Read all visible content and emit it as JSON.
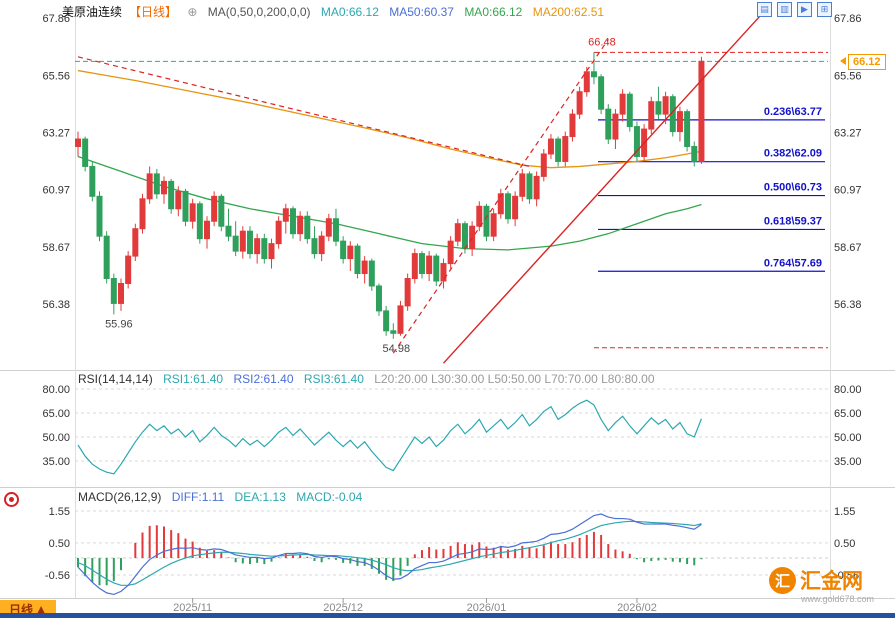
{
  "header": {
    "title": "美原油连续",
    "period": "【日线】",
    "indicator": "MA(0,50,0,200,0,0)",
    "ma_labels": [
      {
        "text": "MA0:66.12",
        "color": "#2ba8b0"
      },
      {
        "text": "MA50:60.37",
        "color": "#4a6fd8"
      },
      {
        "text": "MA0:66.12",
        "color": "#33a64c"
      },
      {
        "text": "MA200:62.51",
        "color": "#e8950f"
      }
    ]
  },
  "icons": {
    "add_indicator": "⊕"
  },
  "toolbar_icons": [
    {
      "glyph": "▤"
    },
    {
      "glyph": "▥"
    },
    {
      "glyph": "▶"
    },
    {
      "glyph": "⊞"
    }
  ],
  "price_axis": {
    "main_ticks": [
      "67.86",
      "65.56",
      "63.27",
      "60.97",
      "58.67",
      "56.38"
    ],
    "rsi_ticks": [
      "80.00",
      "65.00",
      "50.00",
      "35.00"
    ],
    "macd_ticks": [
      "1.55",
      "0.50",
      "-0.56"
    ],
    "last_price_tag": "66.12"
  },
  "x_axis": [
    {
      "text": "2025/11",
      "index": 16
    },
    {
      "text": "2025/12",
      "index": 37
    },
    {
      "text": "2026/01",
      "index": 57
    },
    {
      "text": "2026/02",
      "index": 78
    }
  ],
  "annotations": {
    "peak": {
      "text": "66.48",
      "price": 66.48,
      "index": 72
    },
    "low1": {
      "text": "55.96",
      "price": 55.96,
      "index": 5
    },
    "low2": {
      "text": "54.98",
      "price": 54.98,
      "index": 44
    },
    "last_price_line": 66.12,
    "ext_high_line": 66.48,
    "ext_low_line": 54.98
  },
  "fib_levels": [
    {
      "label": "0.236\\63.77",
      "value": 63.77
    },
    {
      "label": "0.382\\62.09",
      "value": 62.09
    },
    {
      "label": "0.500\\60.73",
      "value": 60.73
    },
    {
      "label": "0.618\\59.37",
      "value": 59.37
    },
    {
      "label": "0.764\\57.69",
      "value": 57.69
    }
  ],
  "trend_lines": [
    {
      "style": "dashed",
      "points": [
        [
          0,
          66.3
        ],
        [
          63,
          61.9
        ]
      ]
    },
    {
      "style": "dashed",
      "points": [
        [
          44,
          54.4
        ],
        [
          74,
          67.0
        ]
      ]
    },
    {
      "style": "solid",
      "points": [
        [
          51,
          54.0
        ],
        [
          96,
          68.2
        ]
      ]
    }
  ],
  "rsi_panel": {
    "header": "RSI(14,14,14)",
    "labels": [
      {
        "text": "RSI1:61.40",
        "color": "#2ba8b0"
      },
      {
        "text": "RSI2:61.40",
        "color": "#4a6fd8"
      },
      {
        "text": "RSI3:61.40",
        "color": "#2ba8b0"
      }
    ],
    "levels_text": "L20:20.00  L30:30.00  L50:50.00  L70:70.00  L80:80.00"
  },
  "macd_panel": {
    "header": "MACD(26,12,9)",
    "labels": [
      {
        "text": "DIFF:1.11",
        "color": "#4a6fd8"
      },
      {
        "text": "DEA:1.13",
        "color": "#2ba8b0"
      },
      {
        "text": "MACD:-0.04",
        "color": "#2ba8b0"
      }
    ]
  },
  "footer": {
    "tab": "日线",
    "arrow": "▲"
  },
  "watermark": {
    "logo_char": "汇",
    "brand": "汇金网",
    "url": "www.gold678.com"
  },
  "colors": {
    "up": "#e23a3a",
    "down": "#2fa05c",
    "ma50": "#33a64c",
    "ma200": "#e8950f",
    "rsi": "#2ba8b0",
    "diff": "#4a6fd8",
    "dea": "#2ba8b0",
    "fib": "#1212cc",
    "trend": "#dd2222",
    "last_price": "#2ba8b0",
    "tag": "#f59a00",
    "grid": "#d9d9d9",
    "separator": "#cfcfcf",
    "axis_text": "#333",
    "x_text": "#888"
  },
  "chart_data": {
    "type": "candlestick",
    "symbol": "美原油连续",
    "period": "日线",
    "main_ylim": [
      53.9,
      68.0
    ],
    "candles": [
      [
        62.7,
        63.3,
        62.3,
        63.0
      ],
      [
        63.0,
        63.1,
        61.7,
        61.9
      ],
      [
        61.9,
        62.1,
        60.5,
        60.7
      ],
      [
        60.7,
        60.9,
        58.9,
        59.1
      ],
      [
        59.1,
        59.3,
        57.2,
        57.4
      ],
      [
        57.4,
        57.6,
        55.96,
        56.4
      ],
      [
        56.4,
        57.4,
        56.1,
        57.2
      ],
      [
        57.2,
        58.5,
        57.0,
        58.3
      ],
      [
        58.3,
        59.6,
        58.1,
        59.4
      ],
      [
        59.4,
        60.8,
        59.2,
        60.6
      ],
      [
        60.6,
        61.9,
        60.4,
        61.6
      ],
      [
        61.6,
        61.8,
        60.6,
        60.8
      ],
      [
        60.8,
        61.5,
        60.4,
        61.3
      ],
      [
        61.3,
        61.4,
        60.0,
        60.2
      ],
      [
        60.2,
        61.1,
        59.9,
        60.9
      ],
      [
        60.9,
        61.0,
        59.5,
        59.7
      ],
      [
        59.7,
        60.6,
        59.4,
        60.4
      ],
      [
        60.4,
        60.5,
        58.8,
        59.0
      ],
      [
        59.0,
        59.9,
        58.6,
        59.7
      ],
      [
        59.7,
        60.9,
        59.5,
        60.7
      ],
      [
        60.7,
        60.8,
        59.3,
        59.5
      ],
      [
        59.5,
        60.2,
        58.9,
        59.1
      ],
      [
        59.1,
        59.7,
        58.3,
        58.5
      ],
      [
        58.5,
        59.5,
        58.2,
        59.3
      ],
      [
        59.3,
        59.5,
        58.2,
        58.4
      ],
      [
        58.4,
        59.2,
        58.0,
        59.0
      ],
      [
        59.0,
        59.2,
        58.0,
        58.2
      ],
      [
        58.2,
        59.0,
        57.8,
        58.8
      ],
      [
        58.8,
        59.9,
        58.6,
        59.7
      ],
      [
        59.7,
        60.4,
        59.2,
        60.2
      ],
      [
        60.2,
        60.3,
        59.0,
        59.2
      ],
      [
        59.2,
        60.1,
        58.9,
        59.9
      ],
      [
        59.9,
        60.1,
        58.8,
        59.0
      ],
      [
        59.0,
        59.5,
        58.2,
        58.4
      ],
      [
        58.4,
        59.3,
        58.1,
        59.1
      ],
      [
        59.1,
        60.0,
        58.9,
        59.8
      ],
      [
        59.8,
        60.2,
        58.7,
        58.9
      ],
      [
        58.9,
        59.1,
        58.0,
        58.2
      ],
      [
        58.2,
        58.9,
        57.7,
        58.7
      ],
      [
        58.7,
        58.8,
        57.4,
        57.6
      ],
      [
        57.6,
        58.3,
        57.2,
        58.1
      ],
      [
        58.1,
        58.2,
        56.9,
        57.1
      ],
      [
        57.1,
        57.2,
        55.9,
        56.1
      ],
      [
        56.1,
        56.3,
        55.1,
        55.3
      ],
      [
        55.3,
        55.6,
        54.98,
        55.2
      ],
      [
        55.2,
        56.5,
        55.1,
        56.3
      ],
      [
        56.3,
        57.6,
        56.1,
        57.4
      ],
      [
        57.4,
        58.6,
        57.2,
        58.4
      ],
      [
        58.4,
        58.5,
        57.4,
        57.6
      ],
      [
        57.6,
        58.5,
        57.3,
        58.3
      ],
      [
        58.3,
        58.4,
        57.1,
        57.3
      ],
      [
        57.3,
        58.2,
        57.0,
        58.0
      ],
      [
        58.0,
        59.1,
        57.8,
        58.9
      ],
      [
        58.9,
        59.8,
        58.7,
        59.6
      ],
      [
        59.6,
        59.7,
        58.4,
        58.6
      ],
      [
        58.6,
        59.7,
        58.3,
        59.5
      ],
      [
        59.5,
        60.5,
        59.3,
        60.3
      ],
      [
        60.3,
        60.4,
        58.9,
        59.1
      ],
      [
        59.1,
        60.2,
        58.9,
        60.0
      ],
      [
        60.0,
        61.0,
        59.8,
        60.8
      ],
      [
        60.8,
        60.9,
        59.6,
        59.8
      ],
      [
        59.8,
        60.9,
        59.5,
        60.7
      ],
      [
        60.7,
        61.8,
        60.5,
        61.6
      ],
      [
        61.6,
        61.7,
        60.4,
        60.6
      ],
      [
        60.6,
        61.7,
        60.3,
        61.5
      ],
      [
        61.5,
        62.6,
        61.3,
        62.4
      ],
      [
        62.4,
        63.2,
        62.2,
        63.0
      ],
      [
        63.0,
        63.1,
        61.9,
        62.1
      ],
      [
        62.1,
        63.3,
        61.9,
        63.1
      ],
      [
        63.1,
        64.2,
        62.9,
        64.0
      ],
      [
        64.0,
        65.1,
        63.8,
        64.9
      ],
      [
        64.9,
        65.9,
        64.7,
        65.7
      ],
      [
        65.7,
        66.48,
        65.2,
        65.5
      ],
      [
        65.5,
        65.6,
        64.0,
        64.2
      ],
      [
        64.2,
        64.4,
        62.8,
        63.0
      ],
      [
        63.0,
        64.2,
        62.6,
        64.0
      ],
      [
        64.0,
        65.0,
        63.7,
        64.8
      ],
      [
        64.8,
        64.9,
        63.3,
        63.5
      ],
      [
        63.5,
        63.7,
        62.09,
        62.3
      ],
      [
        62.3,
        63.6,
        62.1,
        63.4
      ],
      [
        63.4,
        64.7,
        63.2,
        64.5
      ],
      [
        64.5,
        65.1,
        63.8,
        64.0
      ],
      [
        64.0,
        64.9,
        63.6,
        64.7
      ],
      [
        64.7,
        64.8,
        63.1,
        63.3
      ],
      [
        63.3,
        64.3,
        62.9,
        64.1
      ],
      [
        64.1,
        64.2,
        62.5,
        62.7
      ],
      [
        62.7,
        62.9,
        61.9,
        62.1
      ],
      [
        62.1,
        66.3,
        62.0,
        66.12
      ]
    ],
    "ma50_anchors": [
      [
        0,
        62.3
      ],
      [
        6,
        61.7
      ],
      [
        12,
        61.1
      ],
      [
        18,
        60.6
      ],
      [
        24,
        60.2
      ],
      [
        30,
        59.9
      ],
      [
        36,
        59.6
      ],
      [
        42,
        59.2
      ],
      [
        48,
        58.8
      ],
      [
        54,
        58.6
      ],
      [
        60,
        58.55
      ],
      [
        66,
        58.7
      ],
      [
        70,
        58.9
      ],
      [
        74,
        59.2
      ],
      [
        78,
        59.6
      ],
      [
        82,
        60.0
      ],
      [
        85,
        60.2
      ],
      [
        87,
        60.37
      ]
    ],
    "ma200_anchors": [
      [
        0,
        65.75
      ],
      [
        8,
        65.35
      ],
      [
        16,
        64.9
      ],
      [
        24,
        64.45
      ],
      [
        32,
        63.95
      ],
      [
        40,
        63.45
      ],
      [
        46,
        63.05
      ],
      [
        52,
        62.6
      ],
      [
        58,
        62.2
      ],
      [
        62,
        61.95
      ],
      [
        66,
        61.85
      ],
      [
        70,
        61.9
      ],
      [
        74,
        62.0
      ],
      [
        78,
        62.1
      ],
      [
        82,
        62.25
      ],
      [
        85,
        62.4
      ],
      [
        87,
        62.51
      ]
    ],
    "rsi": {
      "ylim": [
        20,
        85
      ],
      "values": [
        45,
        38,
        33,
        30,
        28,
        27,
        33,
        40,
        47,
        53,
        58,
        54,
        57,
        52,
        55,
        50,
        54,
        47,
        51,
        56,
        51,
        48,
        44,
        49,
        45,
        48,
        44,
        48,
        53,
        56,
        51,
        55,
        50,
        45,
        49,
        53,
        48,
        44,
        48,
        43,
        47,
        41,
        36,
        31,
        29,
        36,
        43,
        50,
        46,
        50,
        44,
        48,
        54,
        58,
        52,
        56,
        61,
        53,
        57,
        61,
        55,
        59,
        64,
        57,
        61,
        66,
        69,
        61,
        64,
        68,
        71,
        73,
        70,
        61,
        54,
        59,
        63,
        57,
        52,
        57,
        62,
        58,
        61,
        55,
        59,
        52,
        50,
        61.4
      ]
    },
    "macd": {
      "ylim": [
        -1.3,
        1.65
      ],
      "diff": [
        -0.3,
        -0.55,
        -0.8,
        -1.0,
        -1.15,
        -1.2,
        -1.1,
        -0.9,
        -0.6,
        -0.3,
        -0.05,
        0.1,
        0.22,
        0.28,
        0.33,
        0.32,
        0.34,
        0.28,
        0.26,
        0.3,
        0.28,
        0.2,
        0.1,
        0.06,
        0.02,
        0.02,
        -0.02,
        0.0,
        0.08,
        0.15,
        0.15,
        0.17,
        0.14,
        0.05,
        0.02,
        0.06,
        0.05,
        -0.02,
        -0.05,
        -0.12,
        -0.15,
        -0.25,
        -0.4,
        -0.58,
        -0.7,
        -0.68,
        -0.55,
        -0.35,
        -0.25,
        -0.15,
        -0.15,
        -0.1,
        0.0,
        0.12,
        0.15,
        0.2,
        0.3,
        0.28,
        0.3,
        0.38,
        0.35,
        0.4,
        0.5,
        0.52,
        0.55,
        0.65,
        0.78,
        0.8,
        0.85,
        0.95,
        1.1,
        1.25,
        1.4,
        1.45,
        1.35,
        1.3,
        1.3,
        1.28,
        1.18,
        1.12,
        1.12,
        1.12,
        1.12,
        1.08,
        1.05,
        1.0,
        0.95,
        1.11
      ],
      "dea": [
        -0.15,
        -0.25,
        -0.4,
        -0.55,
        -0.7,
        -0.82,
        -0.9,
        -0.9,
        -0.85,
        -0.72,
        -0.58,
        -0.44,
        -0.3,
        -0.18,
        -0.08,
        0.0,
        0.07,
        0.11,
        0.14,
        0.17,
        0.19,
        0.19,
        0.17,
        0.15,
        0.12,
        0.1,
        0.08,
        0.06,
        0.07,
        0.08,
        0.1,
        0.11,
        0.12,
        0.1,
        0.09,
        0.08,
        0.08,
        0.06,
        0.04,
        0.01,
        -0.02,
        -0.07,
        -0.14,
        -0.22,
        -0.32,
        -0.39,
        -0.42,
        -0.41,
        -0.38,
        -0.33,
        -0.29,
        -0.25,
        -0.2,
        -0.14,
        -0.08,
        -0.02,
        0.04,
        0.09,
        0.13,
        0.18,
        0.21,
        0.25,
        0.3,
        0.34,
        0.39,
        0.44,
        0.51,
        0.57,
        0.62,
        0.69,
        0.77,
        0.87,
        0.97,
        1.07,
        1.12,
        1.16,
        1.19,
        1.21,
        1.2,
        1.19,
        1.17,
        1.16,
        1.15,
        1.14,
        1.12,
        1.1,
        1.07,
        1.13
      ]
    }
  }
}
